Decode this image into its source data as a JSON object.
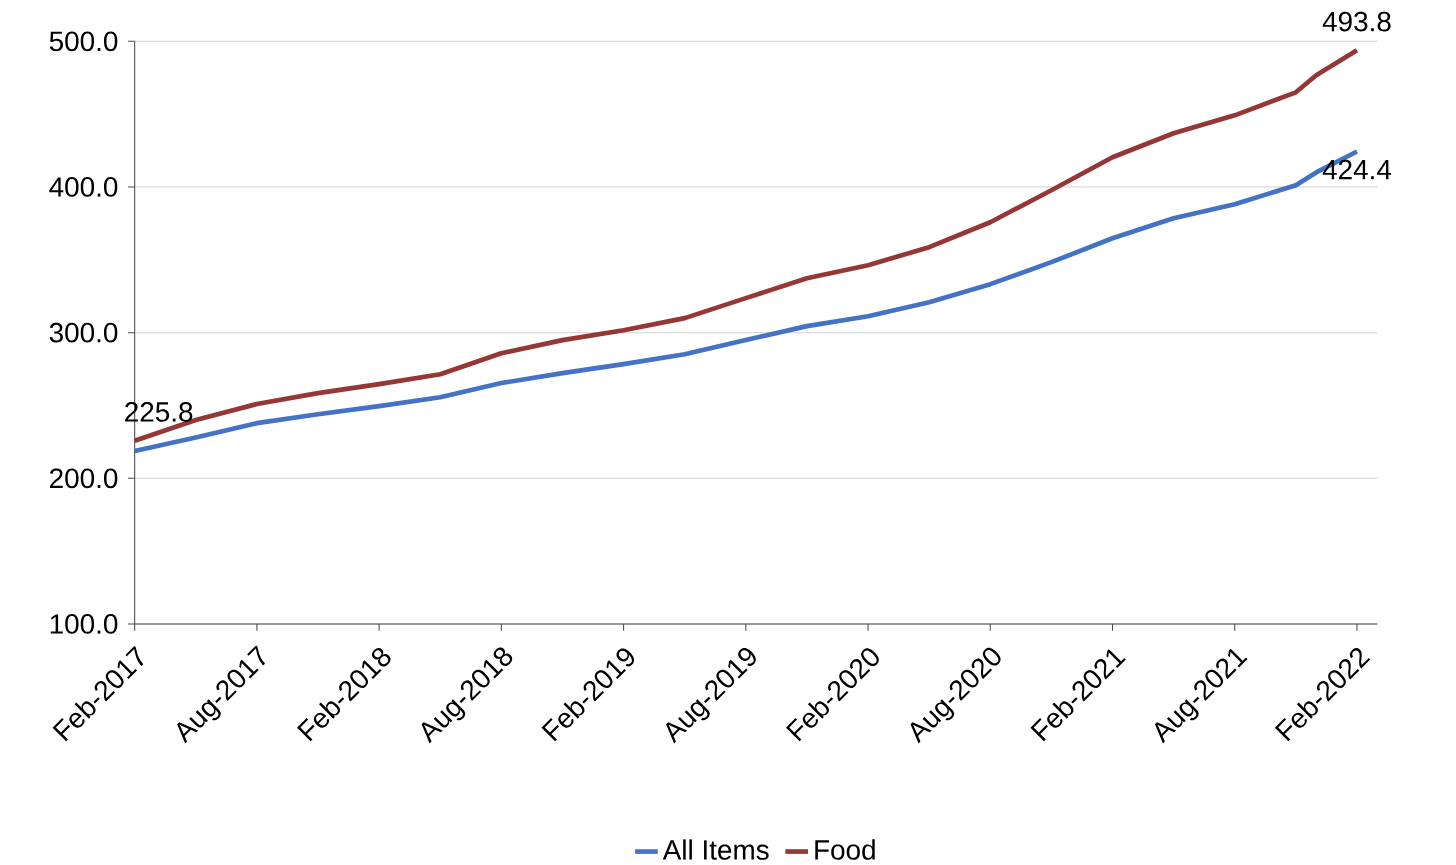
{
  "chart_data": {
    "type": "line",
    "x": [
      "2017-02",
      "2017-05",
      "2017-08",
      "2017-11",
      "2018-02",
      "2018-05",
      "2018-08",
      "2018-11",
      "2019-02",
      "2019-05",
      "2019-08",
      "2019-11",
      "2020-02",
      "2020-05",
      "2020-08",
      "2020-11",
      "2021-02",
      "2021-05",
      "2021-08",
      "2021-11",
      "2021-12",
      "2022-02"
    ],
    "series": [
      {
        "name": "All Items",
        "color": "#4472c4",
        "values": [
          218.7,
          228,
          237.9,
          244,
          249.6,
          255.7,
          265.4,
          272.2,
          278.4,
          285.2,
          294.9,
          304.5,
          311.3,
          320.9,
          333.3,
          348.4,
          364.8,
          378.6,
          388.2,
          401.2,
          410,
          424.4
        ]
      },
      {
        "name": "Food",
        "color": "#953735",
        "values": [
          225.8,
          240,
          251,
          258.5,
          264.7,
          271.5,
          285.9,
          294.9,
          301.7,
          310,
          323.7,
          337.4,
          346.3,
          358.7,
          375.8,
          397.8,
          420.4,
          436.9,
          449.2,
          465,
          476.7,
          493.8
        ]
      }
    ],
    "xlim": [
      "2017-02",
      "2022-03"
    ],
    "xticks": [
      {
        "value": "2017-02",
        "label": "Feb-2017"
      },
      {
        "value": "2017-08",
        "label": "Aug-2017"
      },
      {
        "value": "2018-02",
        "label": "Feb-2018"
      },
      {
        "value": "2018-08",
        "label": "Aug-2018"
      },
      {
        "value": "2019-02",
        "label": "Feb-2019"
      },
      {
        "value": "2019-08",
        "label": "Aug-2019"
      },
      {
        "value": "2020-02",
        "label": "Feb-2020"
      },
      {
        "value": "2020-08",
        "label": "Aug-2020"
      },
      {
        "value": "2021-02",
        "label": "Feb-2021"
      },
      {
        "value": "2021-08",
        "label": "Aug-2021"
      },
      {
        "value": "2022-02",
        "label": "Feb-2022"
      }
    ],
    "ylim": [
      100,
      500
    ],
    "yticks": [
      {
        "value": 100,
        "label": "100.0"
      },
      {
        "value": 200,
        "label": "200.0"
      },
      {
        "value": 300,
        "label": "300.0"
      },
      {
        "value": 400,
        "label": "400.0"
      },
      {
        "value": 500,
        "label": "500.0"
      }
    ],
    "grid": "y",
    "legend": "bottom",
    "marker": "none",
    "line_style": "solid",
    "annotations": [
      {
        "text": "225.8",
        "x": "2017-02",
        "y": 225.8
      },
      {
        "text": "493.8",
        "x": "2022-02",
        "y": 493.8
      },
      {
        "text": "424.4",
        "x": "2022-02",
        "y": 424.4
      }
    ]
  }
}
